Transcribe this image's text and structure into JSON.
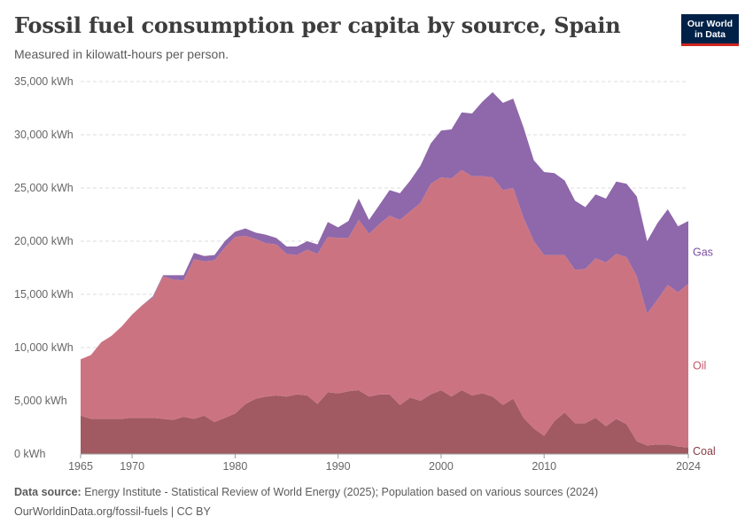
{
  "title": "Fossil fuel consumption per capita by source, Spain",
  "subtitle": "Measured in kilowatt-hours per person.",
  "logo": {
    "line1": "Our World",
    "line2": "in Data"
  },
  "footer": {
    "source_label": "Data source:",
    "source_text": "Energy Institute - Statistical Review of World Energy (2025); Population based on various sources (2024)",
    "url_text": "OurWorldinData.org/fossil-fuels | CC BY"
  },
  "colors": {
    "coal": "#a15a61",
    "oil": "#cc7382",
    "gas": "#8e68aa",
    "grid": "#dddddd"
  },
  "chart_data": {
    "type": "area",
    "stacked": true,
    "x": [
      1965,
      1966,
      1967,
      1968,
      1969,
      1970,
      1971,
      1972,
      1973,
      1974,
      1975,
      1976,
      1977,
      1978,
      1979,
      1980,
      1981,
      1982,
      1983,
      1984,
      1985,
      1986,
      1987,
      1988,
      1989,
      1990,
      1991,
      1992,
      1993,
      1994,
      1995,
      1996,
      1997,
      1998,
      1999,
      2000,
      2001,
      2002,
      2003,
      2004,
      2005,
      2006,
      2007,
      2008,
      2009,
      2010,
      2011,
      2012,
      2013,
      2014,
      2015,
      2016,
      2017,
      2018,
      2019,
      2020,
      2021,
      2022,
      2023,
      2024
    ],
    "series": [
      {
        "name": "Coal",
        "values": [
          3600,
          3300,
          3300,
          3300,
          3300,
          3400,
          3400,
          3400,
          3300,
          3200,
          3500,
          3300,
          3600,
          3000,
          3400,
          3800,
          4700,
          5200,
          5400,
          5500,
          5400,
          5600,
          5500,
          4700,
          5800,
          5700,
          5900,
          6000,
          5400,
          5600,
          5600,
          4600,
          5300,
          5000,
          5600,
          6000,
          5400,
          6000,
          5500,
          5700,
          5400,
          4600,
          5200,
          3400,
          2400,
          1700,
          3100,
          3900,
          2900,
          2900,
          3400,
          2600,
          3300,
          2800,
          1200,
          800,
          900,
          900,
          700,
          600
        ]
      },
      {
        "name": "Oil",
        "values": [
          5300,
          6000,
          7200,
          7800,
          8700,
          9700,
          10600,
          11300,
          13400,
          13200,
          12800,
          15000,
          14500,
          15200,
          16000,
          16600,
          15800,
          15000,
          14400,
          14200,
          13400,
          13100,
          13700,
          14100,
          14600,
          14600,
          14400,
          16000,
          15300,
          16000,
          16800,
          17400,
          17500,
          18600,
          19800,
          20000,
          20500,
          20700,
          20600,
          20400,
          20600,
          20200,
          19800,
          18800,
          17600,
          17000,
          15600,
          14800,
          14400,
          14500,
          15000,
          15400,
          15500,
          15700,
          15500,
          12400,
          13600,
          15000,
          14500,
          15400
        ]
      },
      {
        "name": "Gas",
        "values": [
          0,
          0,
          0,
          0,
          0,
          0,
          0,
          100,
          100,
          400,
          500,
          600,
          500,
          500,
          600,
          500,
          700,
          600,
          800,
          600,
          700,
          800,
          800,
          900,
          1400,
          1000,
          1600,
          2000,
          1300,
          1800,
          2400,
          2500,
          2900,
          3500,
          3800,
          4400,
          4600,
          5400,
          5900,
          7000,
          8000,
          8200,
          8400,
          8500,
          7600,
          7800,
          7700,
          7000,
          6500,
          5800,
          6000,
          6000,
          6800,
          6900,
          7500,
          6800,
          7200,
          7100,
          6200,
          5900
        ]
      }
    ],
    "ylabel": "",
    "ylim": [
      0,
      35000
    ],
    "yticks": [
      {
        "value": 0,
        "label": "0 kWh"
      },
      {
        "value": 5000,
        "label": "5,000 kWh"
      },
      {
        "value": 10000,
        "label": "10,000 kWh"
      },
      {
        "value": 15000,
        "label": "15,000 kWh"
      },
      {
        "value": 20000,
        "label": "20,000 kWh"
      },
      {
        "value": 25000,
        "label": "25,000 kWh"
      },
      {
        "value": 30000,
        "label": "30,000 kWh"
      },
      {
        "value": 35000,
        "label": "35,000 kWh"
      }
    ],
    "xlim": [
      1965,
      2024
    ],
    "xticks": [
      {
        "value": 1965,
        "label": "1965"
      },
      {
        "value": 1970,
        "label": "1970"
      },
      {
        "value": 1980,
        "label": "1980"
      },
      {
        "value": 1990,
        "label": "1990"
      },
      {
        "value": 2000,
        "label": "2000"
      },
      {
        "value": 2010,
        "label": "2010"
      },
      {
        "value": 2024,
        "label": "2024"
      }
    ],
    "grid": true,
    "legend": "inline-right"
  }
}
